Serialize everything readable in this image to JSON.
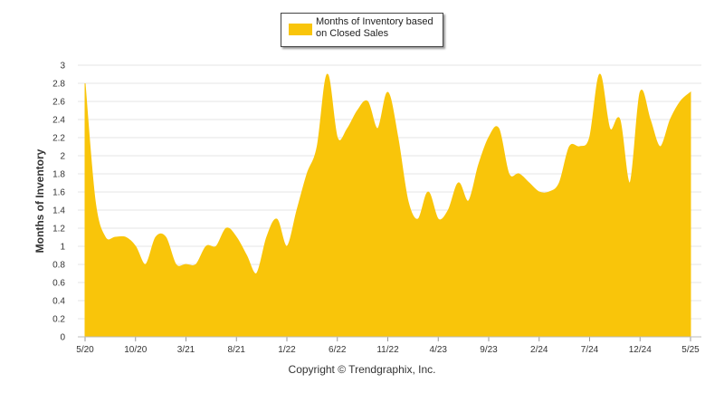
{
  "chart_data": {
    "type": "area",
    "title": "",
    "xlabel": "",
    "ylabel": "Months of Inventory",
    "ylim": [
      0,
      3
    ],
    "yticks": [
      "0",
      "0.2",
      "0.4",
      "0.6",
      "0.8",
      "1",
      "1.2",
      "1.4",
      "1.6",
      "1.8",
      "2",
      "2.2",
      "2.4",
      "2.6",
      "2.8",
      "3"
    ],
    "xtick_labels": [
      "5/20",
      "10/20",
      "3/21",
      "8/21",
      "1/22",
      "6/22",
      "11/22",
      "4/23",
      "9/23",
      "2/24",
      "7/24",
      "12/24",
      "5/25"
    ],
    "grid": true,
    "legend_position": "top-center",
    "color": "#f9c50a",
    "series": [
      {
        "name": "Months of Inventory based on Closed Sales",
        "x": [
          "5/20",
          "6/20",
          "7/20",
          "8/20",
          "9/20",
          "10/20",
          "11/20",
          "12/20",
          "1/21",
          "2/21",
          "3/21",
          "4/21",
          "5/21",
          "6/21",
          "7/21",
          "8/21",
          "9/21",
          "10/21",
          "11/21",
          "12/21",
          "1/22",
          "2/22",
          "3/22",
          "4/22",
          "5/22",
          "6/22",
          "7/22",
          "8/22",
          "9/22",
          "10/22",
          "11/22",
          "12/22",
          "1/23",
          "2/23",
          "3/23",
          "4/23",
          "5/23",
          "6/23",
          "7/23",
          "8/23",
          "9/23",
          "10/23",
          "11/23",
          "12/23",
          "1/24",
          "2/24",
          "3/24",
          "4/24",
          "5/24",
          "6/24",
          "7/24",
          "8/24",
          "9/24",
          "10/24",
          "11/24",
          "12/24",
          "1/25",
          "2/25",
          "3/25",
          "4/25",
          "5/25"
        ],
        "values": [
          2.8,
          1.5,
          1.1,
          1.1,
          1.1,
          1.0,
          0.8,
          1.1,
          1.1,
          0.8,
          0.8,
          0.8,
          1.0,
          1.0,
          1.2,
          1.1,
          0.9,
          0.7,
          1.1,
          1.3,
          1.0,
          1.4,
          1.8,
          2.1,
          2.9,
          2.2,
          2.3,
          2.5,
          2.6,
          2.3,
          2.7,
          2.2,
          1.5,
          1.3,
          1.6,
          1.3,
          1.4,
          1.7,
          1.5,
          1.9,
          2.2,
          2.3,
          1.8,
          1.8,
          1.7,
          1.6,
          1.6,
          1.7,
          2.1,
          2.1,
          2.2,
          2.9,
          2.3,
          2.4,
          1.7,
          2.7,
          2.4,
          2.1,
          2.4,
          2.6,
          2.7
        ]
      }
    ]
  },
  "legend": {
    "label": "Months of Inventory based on Closed Sales"
  },
  "footer": {
    "copyright": "Copyright © Trendgraphix, Inc."
  }
}
